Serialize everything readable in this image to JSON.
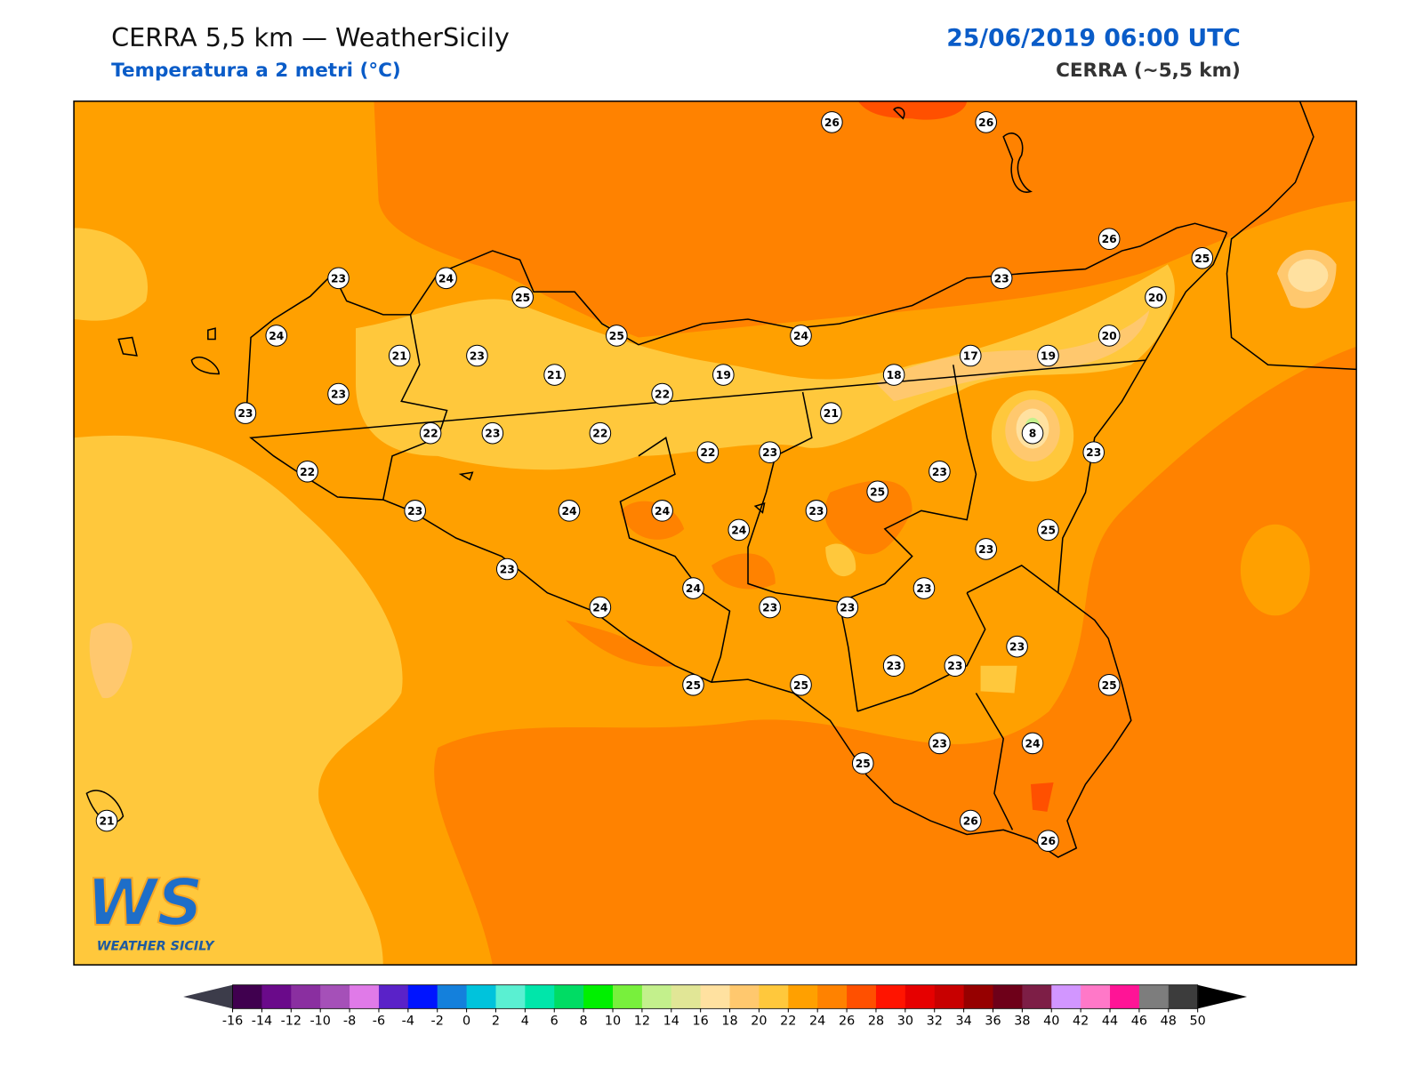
{
  "header": {
    "title": "CERRA 5,5 km — WeatherSicily",
    "subtitle": "Temperatura a 2 metri (°C)",
    "datetime": "25/06/2019 06:00 UTC",
    "model": "CERRA (~5,5 km)"
  },
  "stations": [
    26,
    26,
    26,
    25,
    23,
    24,
    25,
    23,
    20,
    24,
    25,
    24,
    20,
    21,
    23,
    17,
    19,
    21,
    19,
    18,
    23,
    22,
    23,
    21,
    22,
    23,
    22,
    8,
    22,
    23,
    23,
    22,
    23,
    25,
    23,
    24,
    24,
    23,
    24,
    25,
    23,
    23,
    24,
    23,
    24,
    23,
    23,
    23,
    23,
    23,
    25,
    25,
    25,
    23,
    24,
    25,
    26,
    26,
    21
  ],
  "colorbar": {
    "ticks": [
      -16,
      -14,
      -12,
      -10,
      -8,
      -6,
      -4,
      -2,
      0,
      2,
      4,
      6,
      8,
      10,
      12,
      14,
      16,
      18,
      20,
      22,
      24,
      26,
      28,
      30,
      32,
      34,
      36,
      38,
      40,
      42,
      44,
      46,
      48,
      50
    ],
    "colors": [
      "#40004f",
      "#6a0a8a",
      "#8a2fa0",
      "#a550b8",
      "#e07ae8",
      "#5a22c8",
      "#0014ff",
      "#1480dc",
      "#00c3dc",
      "#5af0d2",
      "#00e6aa",
      "#00dc64",
      "#00f000",
      "#78f03c",
      "#c3f08c",
      "#e1e696",
      "#ffe1a0",
      "#ffc86e",
      "#ffc83c",
      "#ffa000",
      "#ff8200",
      "#ff5000",
      "#ff1400",
      "#e60000",
      "#c80000",
      "#960000",
      "#6e0019",
      "#7d1e46",
      "#d296ff",
      "#ff78c8",
      "#ff1496",
      "#7d7d7d",
      "#3c3c3c"
    ],
    "under": "#3c3c4a",
    "over": "#000000"
  },
  "logo": {
    "mark": "WS",
    "text": "WEATHER SICILY"
  }
}
